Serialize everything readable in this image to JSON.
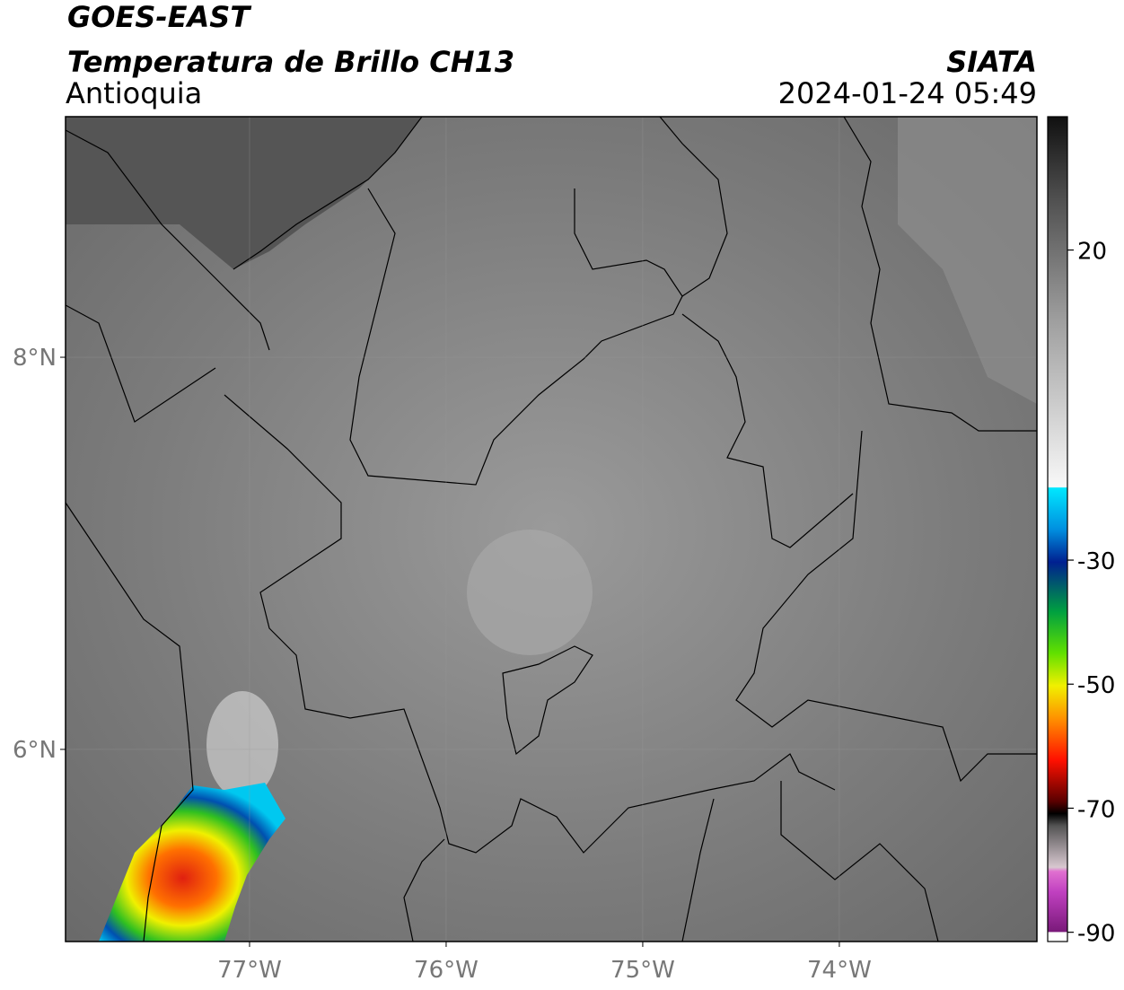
{
  "header": {
    "satellite": "GOES-EAST",
    "product": "Temperatura de Brillo CH13",
    "region": "Antioquia",
    "source": "SIATA",
    "datetime": "2024-01-24 05:49"
  },
  "map": {
    "xlim": [
      -77.936,
      -72.995
    ],
    "ylim": [
      5.02,
      9.227
    ],
    "xticks": [
      {
        "value": -77,
        "label": "77°W"
      },
      {
        "value": -76,
        "label": "76°W"
      },
      {
        "value": -75,
        "label": "75°W"
      },
      {
        "value": -74,
        "label": "74°W"
      }
    ],
    "yticks": [
      {
        "value": 8,
        "label": "8°N"
      },
      {
        "value": 6,
        "label": "6°N"
      }
    ]
  },
  "colorbar": {
    "lim": [
      -91.5,
      41.5
    ],
    "ticks": [
      20,
      -30,
      -50,
      -70,
      -90
    ]
  }
}
